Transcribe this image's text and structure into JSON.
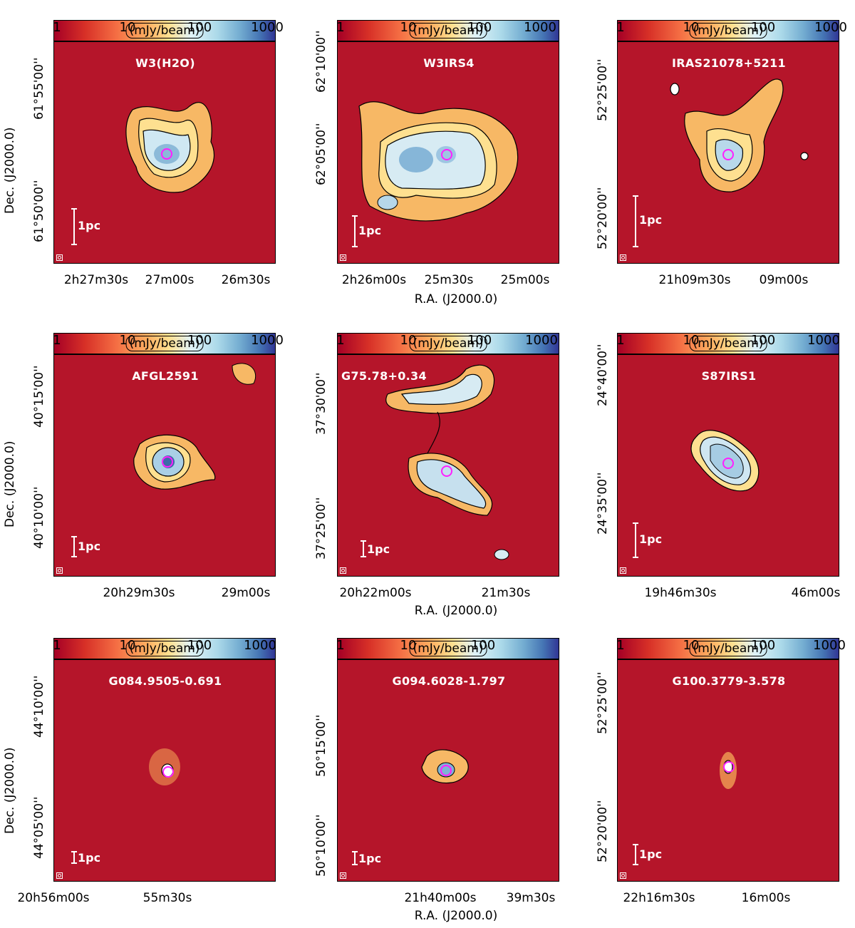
{
  "colorbar": {
    "unit": "(mJy/beam)",
    "ticks": [
      "1",
      "10",
      "100",
      "1000"
    ]
  },
  "axes": {
    "ra_label": "R.A. (J2000.0)",
    "dec_label": "Dec. (J2000.0)"
  },
  "scale_label": "1pc",
  "panels": [
    {
      "name": "W3(H2O)",
      "dec_ticks": [
        "61°50'00''",
        "61°55'00''"
      ],
      "ra_ticks": [
        "2h27m30s",
        "27m00s",
        "26m30s"
      ]
    },
    {
      "name": "W3IRS4",
      "dec_ticks": [
        "62°05'00''",
        "62°10'00''"
      ],
      "ra_ticks": [
        "2h26m00s",
        "25m30s",
        "25m00s"
      ]
    },
    {
      "name": "IRAS21078+5211",
      "dec_ticks": [
        "52°20'00''",
        "52°25'00''"
      ],
      "ra_ticks": [
        "21h09m30s",
        "09m00s"
      ]
    },
    {
      "name": "AFGL2591",
      "dec_ticks": [
        "40°10'00''",
        "40°15'00''"
      ],
      "ra_ticks": [
        "20h29m30s",
        "29m00s"
      ]
    },
    {
      "name": "G75.78+0.34",
      "dec_ticks": [
        "37°25'00''",
        "37°30'00''"
      ],
      "ra_ticks": [
        "20h22m00s",
        "21m30s"
      ]
    },
    {
      "name": "S87IRS1",
      "dec_ticks": [
        "24°35'00''",
        "24°40'00''"
      ],
      "ra_ticks": [
        "19h46m30s",
        "46m00s"
      ]
    },
    {
      "name": "G084.9505-0.691",
      "dec_ticks": [
        "44°05'00''",
        "44°10'00''"
      ],
      "ra_ticks": [
        "20h56m00s",
        "55m30s"
      ]
    },
    {
      "name": "G094.6028-1.797",
      "dec_ticks": [
        "50°10'00''",
        "50°15'00''"
      ],
      "ra_ticks": [
        "21h40m00s",
        "39m30s"
      ]
    },
    {
      "name": "G100.3779-3.578",
      "dec_ticks": [
        "52°20'00''",
        "52°25'00''"
      ],
      "ra_ticks": [
        "22h16m30s",
        "16m00s"
      ]
    }
  ]
}
